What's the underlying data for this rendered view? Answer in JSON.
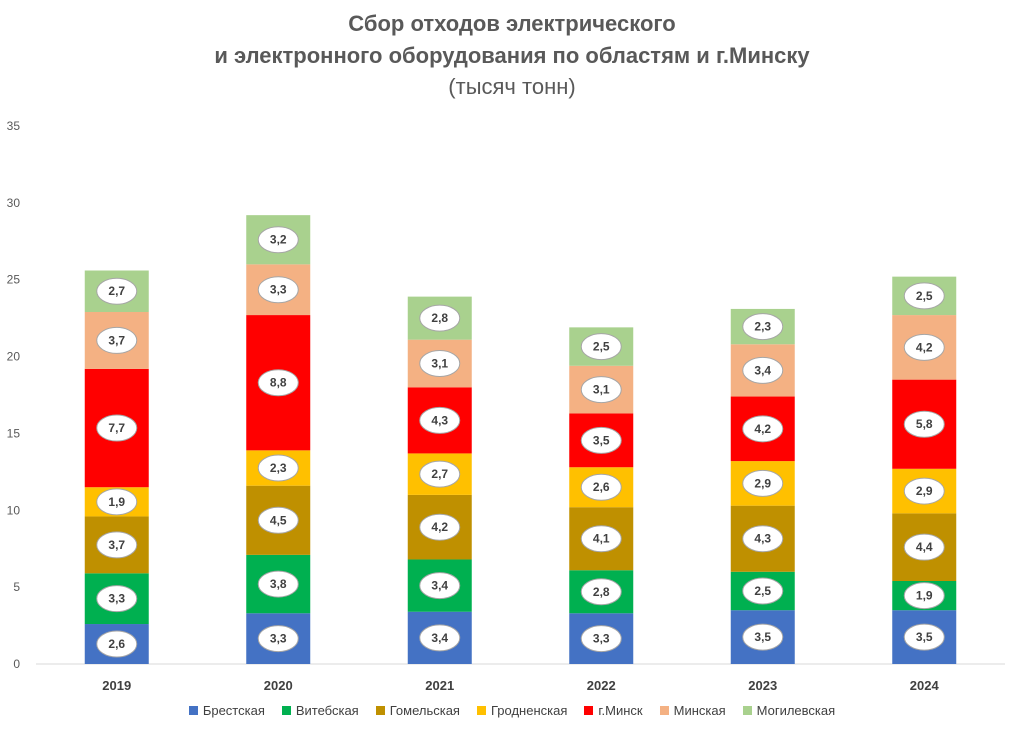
{
  "chart_data": {
    "type": "bar",
    "stacked": true,
    "title": "Сбор отходов электрического",
    "title_line2": "и электронного оборудования по областям и г.Минску",
    "subtitle": "(тысяч тонн)",
    "categories": [
      "2019",
      "2020",
      "2021",
      "2022",
      "2023",
      "2024"
    ],
    "ylim": [
      0,
      35
    ],
    "yticks": [
      0,
      5,
      10,
      15,
      20,
      25,
      30,
      35
    ],
    "grid": false,
    "legend_position": "bottom",
    "series": [
      {
        "name": "Брестская",
        "color": "#4472C4",
        "values": [
          2.6,
          3.3,
          3.4,
          3.3,
          3.5,
          3.5
        ],
        "labels": [
          "2,6",
          "3,3",
          "3,4",
          "3,3",
          "3,5",
          "3,5"
        ]
      },
      {
        "name": "Витебская",
        "color": "#00B050",
        "values": [
          3.3,
          3.8,
          3.4,
          2.8,
          2.5,
          1.9
        ],
        "labels": [
          "3,3",
          "3,8",
          "3,4",
          "2,8",
          "2,5",
          "1,9"
        ]
      },
      {
        "name": "Гомельская",
        "color": "#BF9000",
        "values": [
          3.7,
          4.5,
          4.2,
          4.1,
          4.3,
          4.4
        ],
        "labels": [
          "3,7",
          "4,5",
          "4,2",
          "4,1",
          "4,3",
          "4,4"
        ]
      },
      {
        "name": "Гродненская",
        "color": "#FFC000",
        "values": [
          1.9,
          2.3,
          2.7,
          2.6,
          2.9,
          2.9
        ],
        "labels": [
          "1,9",
          "2,3",
          "2,7",
          "2,6",
          "2,9",
          "2,9"
        ]
      },
      {
        "name": "г.Минск",
        "color": "#FF0000",
        "values": [
          7.7,
          8.8,
          4.3,
          3.5,
          4.2,
          5.8
        ],
        "labels": [
          "7,7",
          "8,8",
          "4,3",
          "3,5",
          "4,2",
          "5,8"
        ]
      },
      {
        "name": "Минская",
        "color": "#F4B183",
        "values": [
          3.7,
          3.3,
          3.1,
          3.1,
          3.4,
          4.2
        ],
        "labels": [
          "3,7",
          "3,3",
          "3,1",
          "3,1",
          "3,4",
          "4,2"
        ]
      },
      {
        "name": "Могилевская",
        "color": "#A9D18E",
        "values": [
          2.7,
          3.2,
          2.8,
          2.5,
          2.3,
          2.5
        ],
        "labels": [
          "2,7",
          "3,2",
          "2,8",
          "2,5",
          "2,3",
          "2,5"
        ]
      }
    ]
  }
}
